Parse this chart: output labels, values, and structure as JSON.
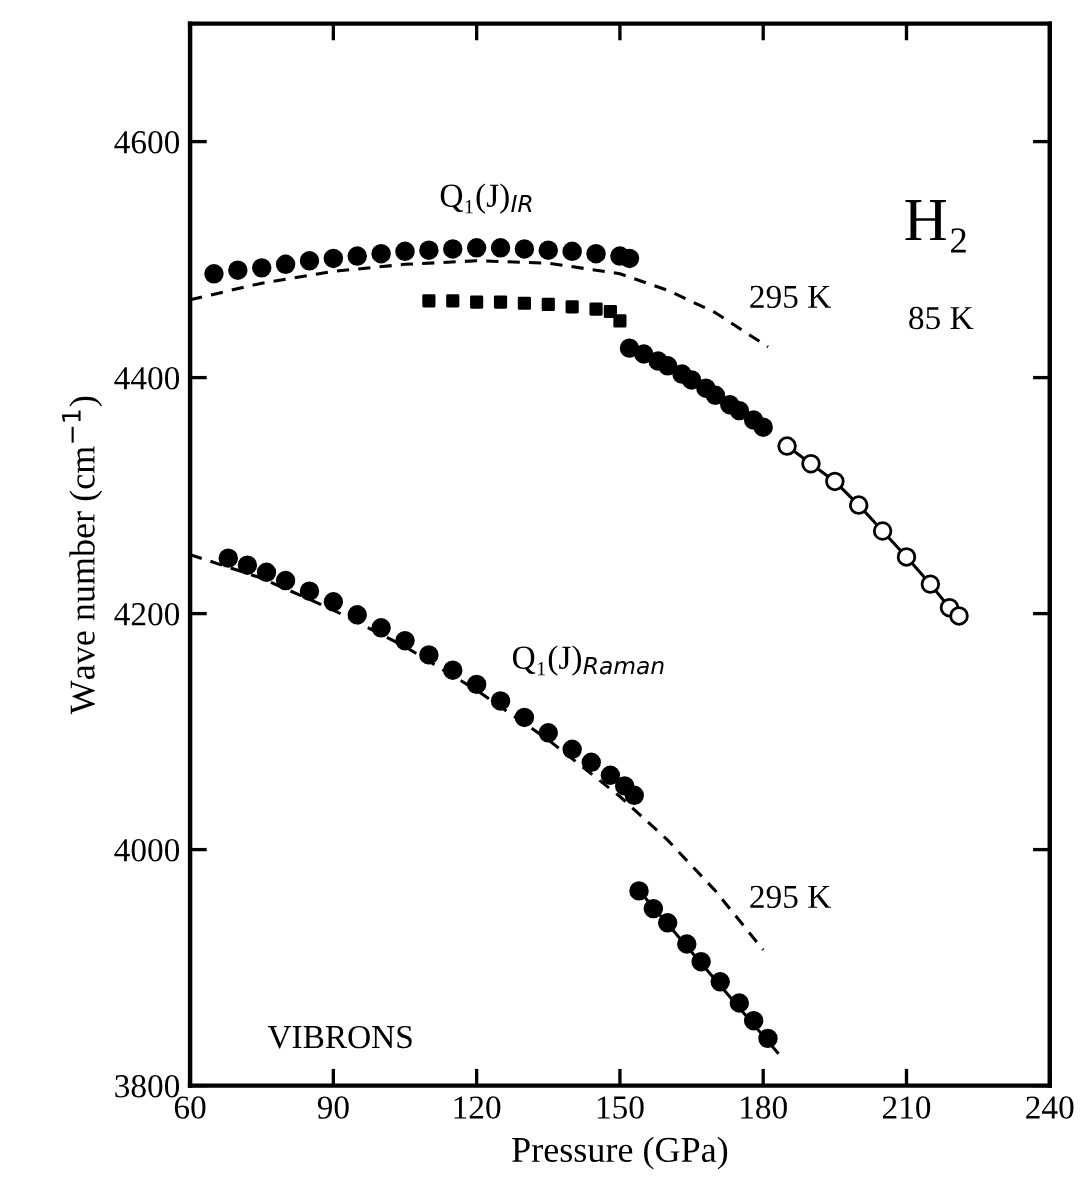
{
  "chart_data": {
    "type": "scatter",
    "xlabel": "Pressure (GPa)",
    "ylabel": "Wave number (cm$^{−1}$)",
    "xlim": [
      60,
      240
    ],
    "xticks": [
      60,
      90,
      120,
      150,
      180,
      210,
      240
    ],
    "ylim": [
      3800,
      4700
    ],
    "yticks": [
      3800,
      4000,
      4200,
      4400,
      4600
    ],
    "grid": false,
    "legend": false,
    "series": [
      {
        "marker": "circle",
        "color": "#000000",
        "x": [
          65,
          70,
          75,
          80,
          85,
          90,
          95,
          100,
          105,
          110,
          115,
          120,
          125,
          130,
          135,
          140,
          145,
          150,
          152
        ],
        "values": [
          4488,
          4491,
          4493,
          4496,
          4499,
          4501,
          4503,
          4505,
          4507,
          4508,
          4509,
          4510,
          4510,
          4509,
          4508,
          4507,
          4505,
          4503,
          4501
        ]
      },
      {
        "marker": "square",
        "color": "#000000",
        "x": [
          110,
          115,
          120,
          125,
          130,
          135,
          140,
          145,
          148,
          150
        ],
        "values": [
          4465,
          4465,
          4464,
          4464,
          4463,
          4462,
          4460,
          4458,
          4456,
          4448
        ]
      },
      {
        "marker": "circle",
        "color": "#000000",
        "x": [
          152,
          155,
          158,
          160,
          163,
          165,
          168,
          170,
          173,
          175,
          178,
          180
        ],
        "values": [
          4425,
          4420,
          4414,
          4410,
          4403,
          4398,
          4391,
          4385,
          4377,
          4372,
          4364,
          4358
        ]
      },
      {
        "type": "line",
        "line_style": "solid",
        "marker": "circle",
        "color": "#000000",
        "x": [
          185,
          190,
          195,
          200,
          205,
          210,
          215,
          219,
          221
        ],
        "values": [
          4342,
          4327,
          4312,
          4292,
          4270,
          4248,
          4225,
          4205,
          4198
        ]
      },
      {
        "type": "line",
        "line_style": "dashed",
        "marker": "none",
        "color": "#000000",
        "x": [
          60,
          75,
          90,
          105,
          120,
          135,
          150,
          160,
          170,
          181
        ],
        "values": [
          4466,
          4480,
          4490,
          4496,
          4499,
          4497,
          4488,
          4474,
          4455,
          4426
        ]
      },
      {
        "marker": "circle",
        "color": "#000000",
        "x": [
          68,
          72,
          76,
          80,
          85,
          90,
          95,
          100,
          105,
          110,
          115,
          120,
          125,
          130,
          135,
          140,
          144,
          148,
          151,
          153
        ],
        "values": [
          4247,
          4241,
          4235,
          4228,
          4219,
          4210,
          4199,
          4188,
          4177,
          4165,
          4152,
          4140,
          4126,
          4112,
          4099,
          4085,
          4074,
          4063,
          4054,
          4046
        ]
      },
      {
        "type": "line",
        "line_style": "dashed",
        "marker": "none",
        "color": "#000000",
        "x": [
          60,
          75,
          90,
          105,
          120,
          135,
          150,
          160,
          170,
          180
        ],
        "values": [
          4250,
          4230,
          4203,
          4172,
          4135,
          4093,
          4045,
          4008,
          3965,
          3915
        ]
      },
      {
        "type": "line",
        "line_style": "solid",
        "marker": "none",
        "color": "#000000",
        "x": [
          153,
          183
        ],
        "values": [
          3970,
          3828
        ]
      },
      {
        "marker": "circle",
        "color": "#000000",
        "x": [
          154,
          157,
          160,
          164,
          167,
          171,
          175,
          178,
          181
        ],
        "values": [
          3965,
          3950,
          3938,
          3920,
          3905,
          3888,
          3870,
          3855,
          3840
        ]
      }
    ],
    "annotations": [
      "H₂",
      "85 K",
      "VIBRONS",
      "Q₁(J)$_{IR}$",
      "295 K",
      "Q₁(J)$_{Raman}$",
      "295 K"
    ]
  }
}
